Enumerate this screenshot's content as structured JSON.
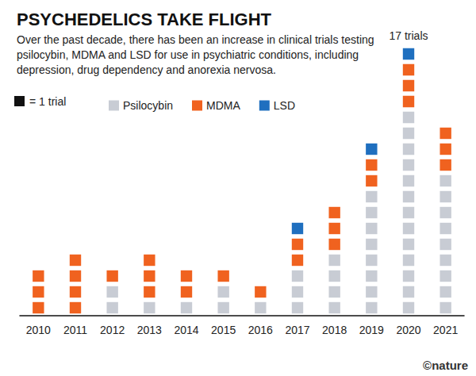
{
  "chart_data": {
    "type": "bar",
    "title": "PSYCHEDELICS TAKE FLIGHT",
    "subtitle": "Over the past decade, there has been an increase in clinical trials testing psilocybin, MDMA and LSD for use in psychiatric conditions, including depression, drug dependency and anorexia nervosa.",
    "legend_note": "= 1 trial",
    "credit": "©nature",
    "categories": [
      "2010",
      "2011",
      "2012",
      "2013",
      "2014",
      "2015",
      "2016",
      "2017",
      "2018",
      "2019",
      "2020",
      "2021"
    ],
    "series": [
      {
        "name": "Psilocybin",
        "color": "#c8ccd4",
        "values": [
          0,
          0,
          2,
          1,
          1,
          2,
          1,
          3,
          4,
          8,
          13,
          9
        ]
      },
      {
        "name": "MDMA",
        "color": "#f0621f",
        "values": [
          3,
          4,
          1,
          3,
          2,
          1,
          1,
          2,
          3,
          2,
          3,
          3
        ]
      },
      {
        "name": "LSD",
        "color": "#1f6fbf",
        "values": [
          0,
          0,
          0,
          0,
          0,
          0,
          0,
          1,
          0,
          1,
          1,
          0
        ]
      }
    ],
    "stacked": true,
    "marker": "square",
    "legend": "top-left",
    "ylim": [
      0,
      17
    ],
    "tick_labels": "x",
    "annotations": [
      {
        "category": "2020",
        "text": "17 trials"
      }
    ]
  }
}
